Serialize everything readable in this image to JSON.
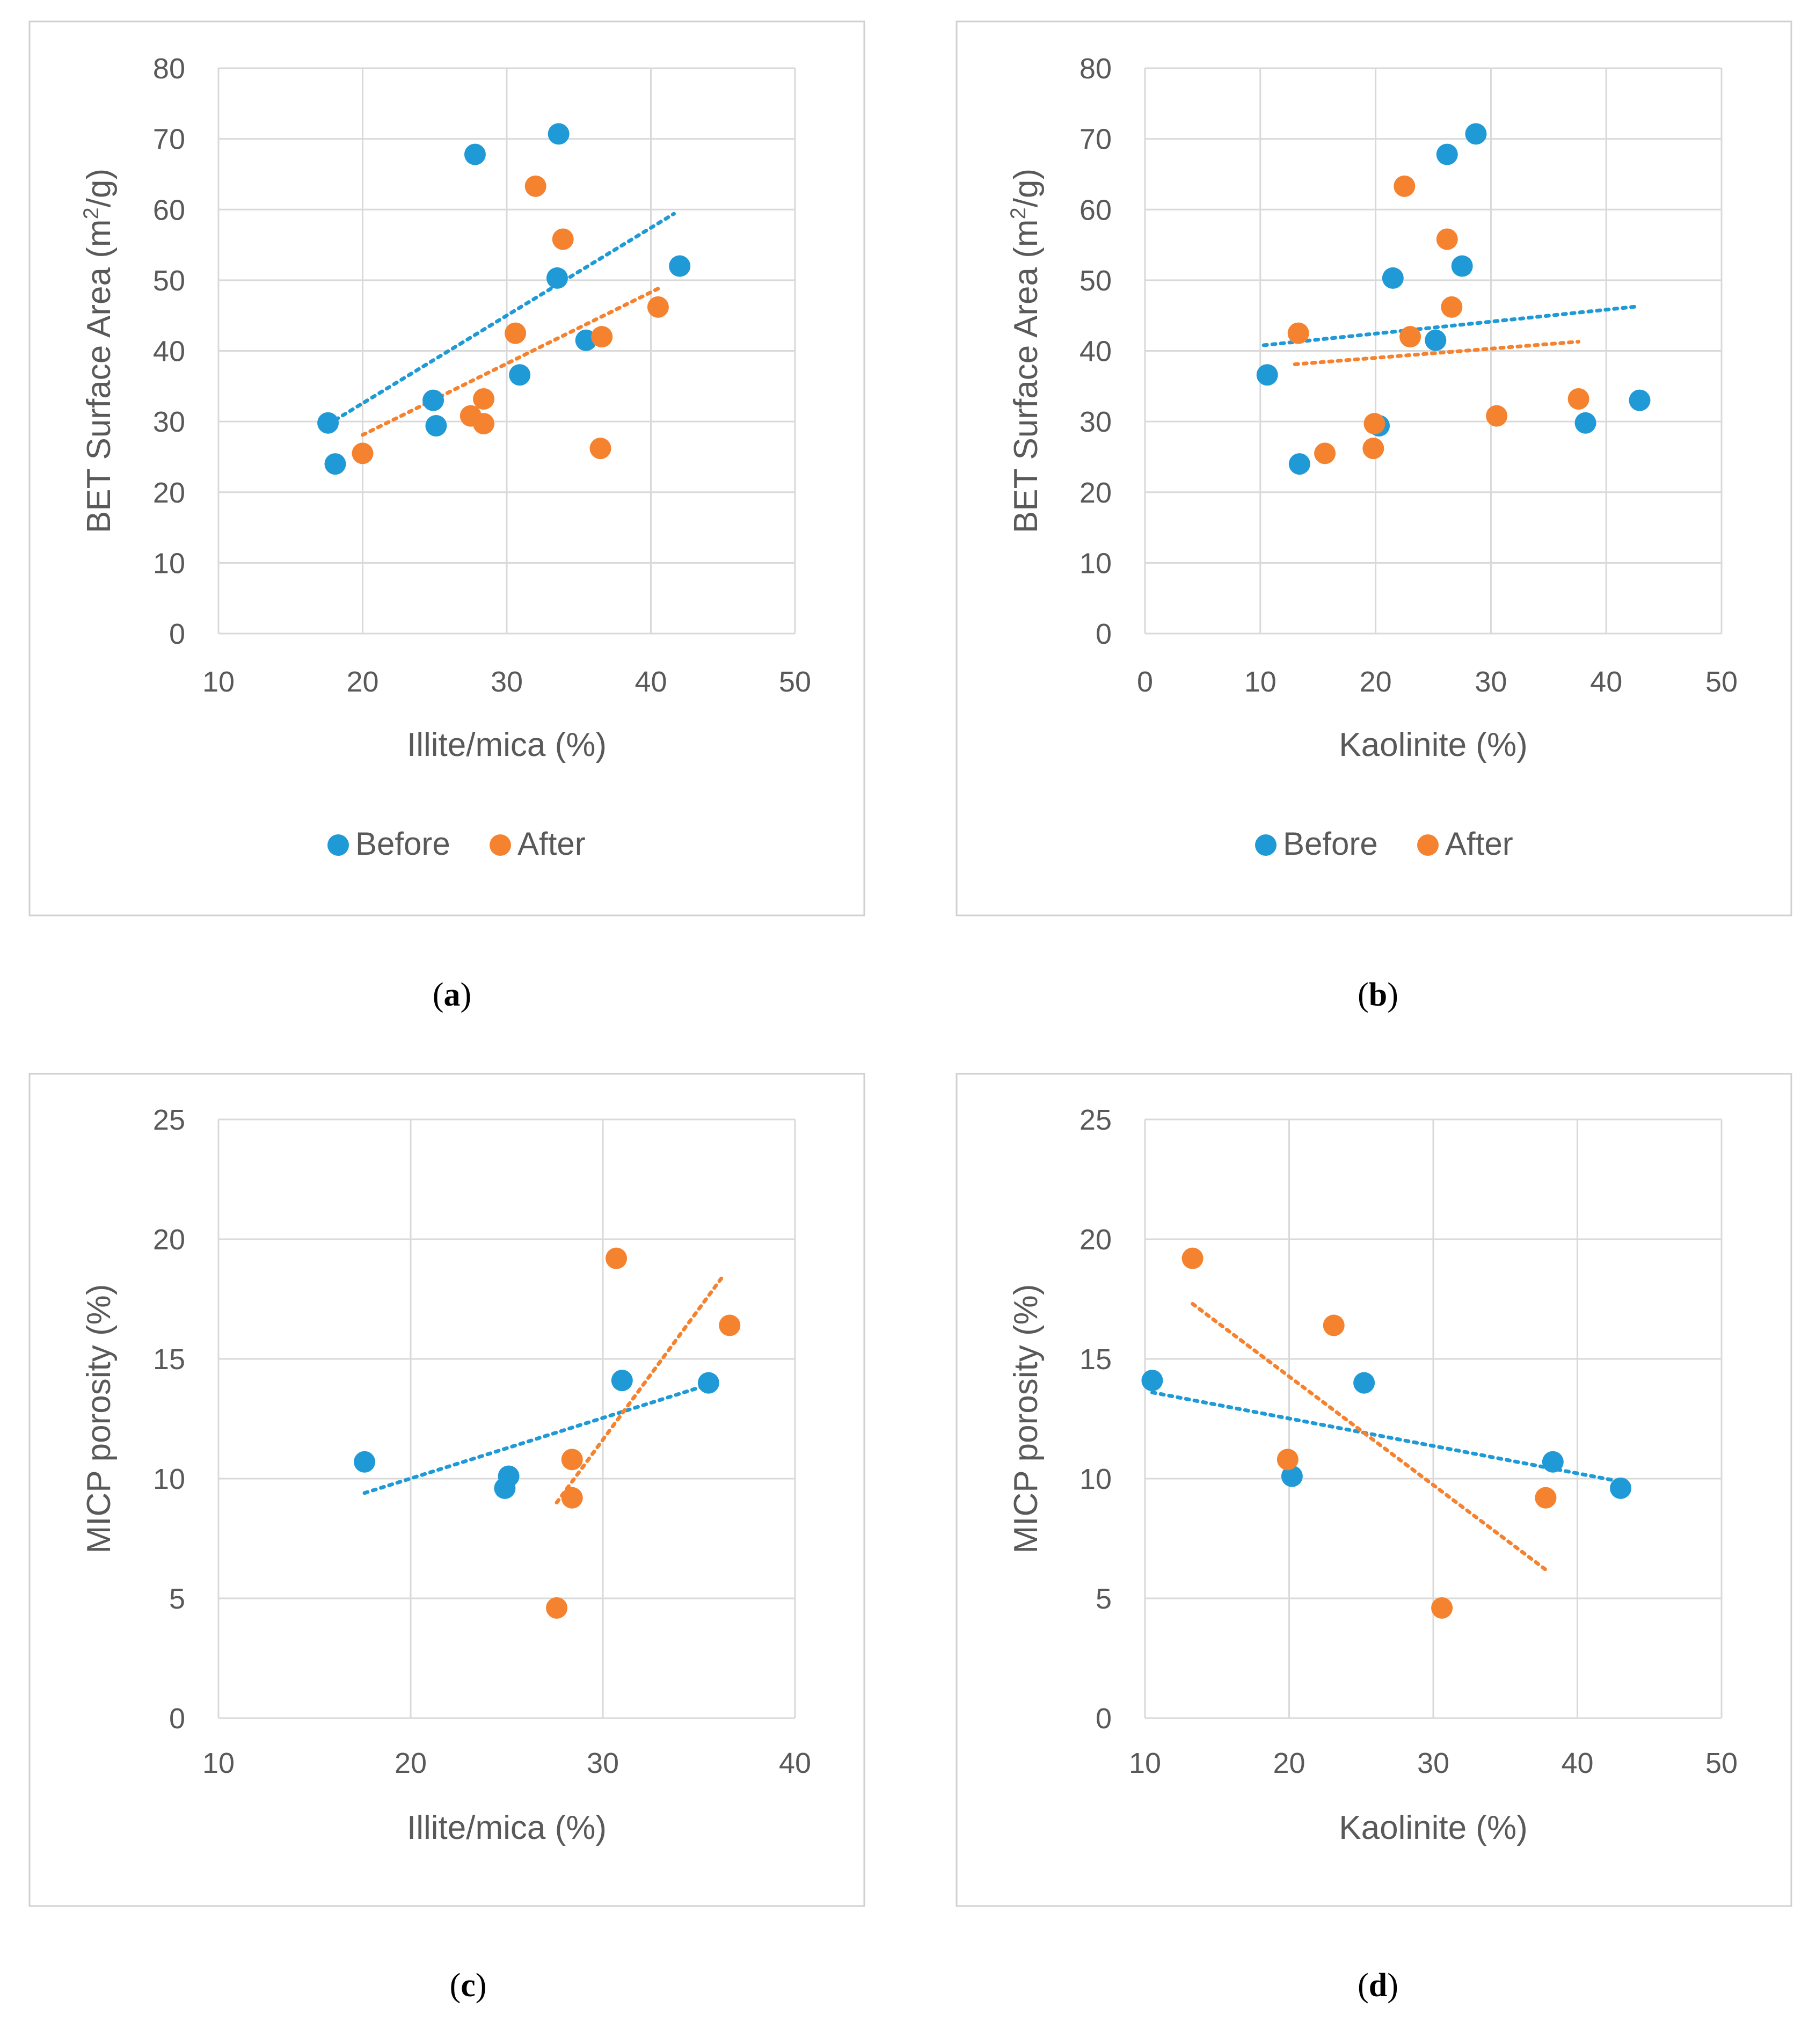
{
  "colors": {
    "before": "#1F9AD6",
    "after": "#F5822F",
    "grid": "#D9D9D9",
    "frame": "#D0D0D0",
    "text": "#595959"
  },
  "legend": {
    "before": "Before",
    "after": "After"
  },
  "captions": {
    "a": "a",
    "b": "b",
    "c": "c",
    "d": "d",
    "open": "(",
    "close": ")"
  },
  "chart_data": [
    {
      "id": "a",
      "type": "scatter",
      "xlabel": "Illite/mica (%)",
      "ylabel_main": "BET Surface Area (m",
      "ylabel_sup": "2",
      "ylabel_tail": "/g)",
      "xlim": [
        10,
        50
      ],
      "ylim": [
        0,
        80
      ],
      "xticks": [
        10,
        20,
        30,
        40,
        50
      ],
      "yticks": [
        0,
        10,
        20,
        30,
        40,
        50,
        60,
        70,
        80
      ],
      "grid": true,
      "legend_position": "bottom",
      "series": [
        {
          "name": "Before",
          "points": [
            [
              17.6,
              29.8
            ],
            [
              18.1,
              24.0
            ],
            [
              24.9,
              33.0
            ],
            [
              25.1,
              29.4
            ],
            [
              27.8,
              67.8
            ],
            [
              30.9,
              36.6
            ],
            [
              33.5,
              50.3
            ],
            [
              33.6,
              70.7
            ],
            [
              35.5,
              41.5
            ],
            [
              42.0,
              52.0
            ]
          ],
          "trend": [
            [
              17.6,
              29.6
            ],
            [
              41.6,
              59.4
            ]
          ]
        },
        {
          "name": "After",
          "points": [
            [
              20.0,
              25.5
            ],
            [
              27.5,
              30.8
            ],
            [
              28.4,
              29.7
            ],
            [
              28.4,
              33.2
            ],
            [
              30.6,
              42.5
            ],
            [
              32.0,
              63.3
            ],
            [
              33.9,
              55.8
            ],
            [
              36.5,
              26.2
            ],
            [
              36.6,
              42.0
            ],
            [
              40.5,
              46.2
            ]
          ],
          "trend": [
            [
              20.0,
              28.1
            ],
            [
              40.6,
              48.9
            ]
          ]
        }
      ]
    },
    {
      "id": "b",
      "type": "scatter",
      "xlabel": "Kaolinite (%)",
      "ylabel_main": "BET Surface Area (m",
      "ylabel_sup": "2",
      "ylabel_tail": "/g)",
      "xlim": [
        0,
        50
      ],
      "ylim": [
        0,
        80
      ],
      "xticks": [
        0,
        10,
        20,
        30,
        40,
        50
      ],
      "yticks": [
        0,
        10,
        20,
        30,
        40,
        50,
        60,
        70,
        80
      ],
      "grid": true,
      "legend_position": "bottom",
      "series": [
        {
          "name": "Before",
          "points": [
            [
              10.6,
              36.6
            ],
            [
              13.4,
              24.0
            ],
            [
              20.3,
              29.4
            ],
            [
              21.5,
              50.3
            ],
            [
              25.2,
              41.5
            ],
            [
              26.2,
              67.8
            ],
            [
              27.5,
              52.0
            ],
            [
              28.7,
              70.7
            ],
            [
              38.2,
              29.8
            ],
            [
              42.9,
              33.0
            ]
          ],
          "trend": [
            [
              10.3,
              40.8
            ],
            [
              42.8,
              46.3
            ]
          ]
        },
        {
          "name": "After",
          "points": [
            [
              13.3,
              42.5
            ],
            [
              15.6,
              25.5
            ],
            [
              19.8,
              26.2
            ],
            [
              19.9,
              29.7
            ],
            [
              22.5,
              63.3
            ],
            [
              23.0,
              42.0
            ],
            [
              26.2,
              55.8
            ],
            [
              26.6,
              46.2
            ],
            [
              30.5,
              30.8
            ],
            [
              37.6,
              33.2
            ]
          ],
          "trend": [
            [
              13.0,
              38.1
            ],
            [
              37.6,
              41.3
            ]
          ]
        }
      ]
    },
    {
      "id": "c",
      "type": "scatter",
      "xlabel": "Illite/mica (%)",
      "ylabel_main": "MICP porosity (%)",
      "ylabel_sup": "",
      "ylabel_tail": "",
      "xlim": [
        10,
        40
      ],
      "ylim": [
        0,
        25
      ],
      "xticks": [
        10,
        20,
        30,
        40
      ],
      "yticks": [
        0,
        5,
        10,
        15,
        20,
        25
      ],
      "grid": true,
      "legend_position": "none",
      "series": [
        {
          "name": "Before",
          "points": [
            [
              17.6,
              10.7
            ],
            [
              24.9,
              9.6
            ],
            [
              25.1,
              10.1
            ],
            [
              31.0,
              14.1
            ],
            [
              35.5,
              14.0
            ]
          ],
          "trend": [
            [
              17.6,
              9.4
            ],
            [
              35.4,
              13.9
            ]
          ]
        },
        {
          "name": "After",
          "points": [
            [
              27.6,
              4.6
            ],
            [
              28.4,
              9.2
            ],
            [
              28.4,
              10.8
            ],
            [
              30.7,
              19.2
            ],
            [
              36.6,
              16.4
            ]
          ],
          "trend": [
            [
              27.6,
              9.0
            ],
            [
              36.2,
              18.4
            ]
          ]
        }
      ]
    },
    {
      "id": "d",
      "type": "scatter",
      "xlabel": "Kaolinite (%)",
      "ylabel_main": "MICP porosity (%)",
      "ylabel_sup": "",
      "ylabel_tail": "",
      "xlim": [
        10,
        50
      ],
      "ylim": [
        0,
        25
      ],
      "xticks": [
        10,
        20,
        30,
        40,
        50
      ],
      "yticks": [
        0,
        5,
        10,
        15,
        20,
        25
      ],
      "grid": true,
      "legend_position": "none",
      "series": [
        {
          "name": "Before",
          "points": [
            [
              10.5,
              14.1
            ],
            [
              20.2,
              10.1
            ],
            [
              25.2,
              14.0
            ],
            [
              38.3,
              10.7
            ],
            [
              43.0,
              9.6
            ]
          ],
          "trend": [
            [
              10.5,
              13.6
            ],
            [
              42.8,
              9.9
            ]
          ]
        },
        {
          "name": "After",
          "points": [
            [
              13.3,
              19.2
            ],
            [
              19.9,
              10.8
            ],
            [
              23.1,
              16.4
            ],
            [
              30.6,
              4.6
            ],
            [
              37.8,
              9.2
            ]
          ],
          "trend": [
            [
              13.3,
              17.3
            ],
            [
              37.8,
              6.2
            ]
          ]
        }
      ]
    }
  ]
}
